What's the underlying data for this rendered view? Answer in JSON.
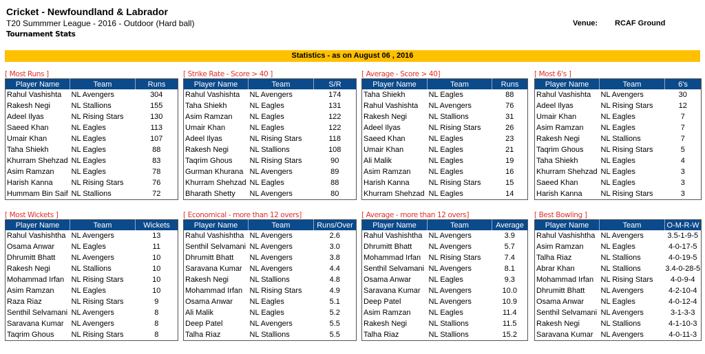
{
  "header": {
    "title": "Cricket - Newfoundland & Labrador",
    "subtitle": "T20 Summmer League - 2016 - Outdoor (Hard ball)",
    "stats_label": "Tournament Stats",
    "venue_label": "Venue:",
    "venue_value": "RCAF Ground"
  },
  "banner": "Statistics - as on August 06 , 2016",
  "colors": {
    "header_bg": "#0b4a8b",
    "banner_bg": "#ffc000",
    "section_title": "#e0302a"
  },
  "tables": [
    {
      "title": "[ Most Runs ]",
      "columns": [
        "Player Name",
        "Team",
        "Runs"
      ],
      "rows": [
        [
          "Rahul Vashishta",
          "NL Avengers",
          "304"
        ],
        [
          "Rakesh Negi",
          "NL Stallions",
          "155"
        ],
        [
          "Adeel Ilyas",
          "NL Rising Stars",
          "130"
        ],
        [
          "Saeed Khan",
          "NL Eagles",
          "113"
        ],
        [
          "Umair Khan",
          "NL Eagles",
          "107"
        ],
        [
          "Taha Shiekh",
          "NL Eagles",
          "88"
        ],
        [
          "Khurram Shehzad",
          "NL Eagles",
          "83"
        ],
        [
          "Asim Ramzan",
          "NL Eagles",
          "78"
        ],
        [
          "Harish Kanna",
          "NL Rising Stars",
          "76"
        ],
        [
          "Hummam Bin Saif",
          "NL Stallions",
          "72"
        ]
      ]
    },
    {
      "title": "[ Strike Rate - Score > 40 ]",
      "columns": [
        "Player Name",
        "Team",
        "S/R"
      ],
      "rows": [
        [
          "Rahul Vashishta",
          "NL Avengers",
          "174"
        ],
        [
          "Taha Shiekh",
          "NL Eagles",
          "131"
        ],
        [
          "Asim Ramzan",
          "NL Eagles",
          "122"
        ],
        [
          "Umair Khan",
          "NL Eagles",
          "122"
        ],
        [
          "Adeel Ilyas",
          "NL Rising Stars",
          "118"
        ],
        [
          "Rakesh Negi",
          "NL Stallions",
          "108"
        ],
        [
          "Taqrim Ghous",
          "NL Rising Stars",
          "90"
        ],
        [
          "Gurman Khurana",
          "NL Avengers",
          "89"
        ],
        [
          "Khurram Shehzad",
          "NL Eagles",
          "88"
        ],
        [
          "Bharath Shetty",
          "NL Avengers",
          "80"
        ]
      ]
    },
    {
      "title": "[ Average - Score > 40]",
      "columns": [
        "Player Name",
        "Team",
        "Runs"
      ],
      "rows": [
        [
          "Taha Shiekh",
          "NL Eagles",
          "88"
        ],
        [
          "Rahul Vashishta",
          "NL Avengers",
          "76"
        ],
        [
          "Rakesh Negi",
          "NL Stallions",
          "31"
        ],
        [
          "Adeel Ilyas",
          "NL Rising Stars",
          "26"
        ],
        [
          "Saeed Khan",
          "NL Eagles",
          "23"
        ],
        [
          "Umair Khan",
          "NL Eagles",
          "21"
        ],
        [
          "Ali Malik",
          "NL Eagles",
          "19"
        ],
        [
          "Asim Ramzan",
          "NL Eagles",
          "16"
        ],
        [
          "Harish Kanna",
          "NL Rising Stars",
          "15"
        ],
        [
          "Khurram Shehzad",
          "NL Eagles",
          "14"
        ]
      ]
    },
    {
      "title": "[ Most 6's ]",
      "columns": [
        "Player Name",
        "Team",
        "6's"
      ],
      "rows": [
        [
          "Rahul Vashishta",
          "NL Avengers",
          "30"
        ],
        [
          "Adeel Ilyas",
          "NL Rising Stars",
          "12"
        ],
        [
          "Umair Khan",
          "NL Eagles",
          "7"
        ],
        [
          "Asim Ramzan",
          "NL Eagles",
          "7"
        ],
        [
          "Rakesh Negi",
          "NL Stallions",
          "7"
        ],
        [
          "Taqrim Ghous",
          "NL Rising Stars",
          "5"
        ],
        [
          "Taha Shiekh",
          "NL Eagles",
          "4"
        ],
        [
          "Khurram Shehzad",
          "NL Eagles",
          "3"
        ],
        [
          "Saeed Khan",
          "NL Eagles",
          "3"
        ],
        [
          "Harish Kanna",
          "NL Rising Stars",
          "3"
        ]
      ]
    },
    {
      "title": "[ Most Wickets ]",
      "columns": [
        "Player Name",
        "Team",
        "Wickets"
      ],
      "rows": [
        [
          "Rahul Vashishtha",
          "NL Avengers",
          "13"
        ],
        [
          "Osama Anwar",
          "NL Eagles",
          "11"
        ],
        [
          "Dhrumitt Bhatt",
          "NL Avengers",
          "10"
        ],
        [
          "Rakesh Negi",
          "NL Stallions",
          "10"
        ],
        [
          "Mohammad Irfan",
          "NL Rising Stars",
          "10"
        ],
        [
          "Asim Ramzan",
          "NL Eagles",
          "10"
        ],
        [
          "Raza Riaz",
          "NL Rising Stars",
          "9"
        ],
        [
          "Senthil Selvamani",
          "NL Avengers",
          "8"
        ],
        [
          "Saravana Kumar",
          "NL Avengers",
          "8"
        ],
        [
          "Taqrim Ghous",
          "NL Rising Stars",
          "8"
        ]
      ]
    },
    {
      "title": "[ Economical - more than 12 overs]",
      "columns": [
        "Player Name",
        "Team",
        "Runs/Over"
      ],
      "rows": [
        [
          "Rahul Vashishtha",
          "NL Avengers",
          "2.6"
        ],
        [
          "Senthil Selvamani",
          "NL Avengers",
          "3.0"
        ],
        [
          "Dhrumitt Bhatt",
          "NL Avengers",
          "3.8"
        ],
        [
          "Saravana Kumar",
          "NL Avengers",
          "4.4"
        ],
        [
          "Rakesh Negi",
          "NL Stallions",
          "4.8"
        ],
        [
          "Mohammad Irfan",
          "NL Rising Stars",
          "4.9"
        ],
        [
          "Osama Anwar",
          "NL Eagles",
          "5.1"
        ],
        [
          "Ali Malik",
          "NL Eagles",
          "5.2"
        ],
        [
          "Deep Patel",
          "NL Avengers",
          "5.5"
        ],
        [
          "Talha Riaz",
          "NL Stallions",
          "5.5"
        ]
      ]
    },
    {
      "title": "[ Average - more than 12 overs]",
      "columns": [
        "Player Name",
        "Team",
        "Average"
      ],
      "rows": [
        [
          "Rahul Vashishtha",
          "NL Avengers",
          "3.9"
        ],
        [
          "Dhrumitt Bhatt",
          "NL Avengers",
          "5.7"
        ],
        [
          "Mohammad Irfan",
          "NL Rising Stars",
          "7.4"
        ],
        [
          "Senthil Selvamani",
          "NL Avengers",
          "8.1"
        ],
        [
          "Osama Anwar",
          "NL Eagles",
          "9.3"
        ],
        [
          "Saravana Kumar",
          "NL Avengers",
          "10.0"
        ],
        [
          "Deep Patel",
          "NL Avengers",
          "10.9"
        ],
        [
          "Asim Ramzan",
          "NL Eagles",
          "11.4"
        ],
        [
          "Rakesh Negi",
          "NL Stallions",
          "11.5"
        ],
        [
          "Talha Riaz",
          "NL Stallions",
          "15.2"
        ]
      ]
    },
    {
      "title": "[ Best Bowling ]",
      "columns": [
        "Player Name",
        "Team",
        "O-M-R-W"
      ],
      "rows": [
        [
          "Rahul Vashishtha",
          "NL Avengers",
          "3.5-1-9-5"
        ],
        [
          "Asim Ramzan",
          "NL Eagles",
          "4-0-17-5"
        ],
        [
          "Talha Riaz",
          "NL Stallions",
          "4-0-19-5"
        ],
        [
          "Abrar Khan",
          "NL Stallions",
          "3.4-0-28-5"
        ],
        [
          "Mohammad Irfan",
          "NL Rising Stars",
          "4-0-9-4"
        ],
        [
          "Dhrumitt Bhatt",
          "NL Avengers",
          "4-2-10-4"
        ],
        [
          "Osama Anwar",
          "NL Eagles",
          "4-0-12-4"
        ],
        [
          "Senthil Selvamani",
          "NL Avengers",
          "3-1-3-3"
        ],
        [
          "Rakesh Negi",
          "NL Stallions",
          "4-1-10-3"
        ],
        [
          "Saravana Kumar",
          "NL Avengers",
          "4-0-11-3"
        ]
      ]
    }
  ]
}
